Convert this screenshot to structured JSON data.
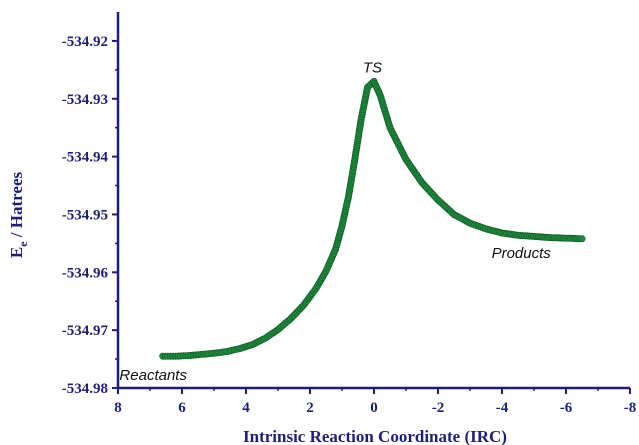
{
  "chart_data": {
    "type": "scatter",
    "title": "",
    "xlabel": "Intrinsic Reaction Coordinate (IRC)",
    "ylabel_main": "E",
    "ylabel_sub": "e",
    "ylabel_rest": " / Hatrees",
    "xlim": [
      8,
      -8
    ],
    "ylim": [
      -534.98,
      -534.915
    ],
    "x_reversed": true,
    "x_ticks": [
      "8",
      "6",
      "4",
      "2",
      "0",
      "-2",
      "-4",
      "-6",
      "-8"
    ],
    "y_ticks": [
      "-534.92",
      "-534.93",
      "-534.94",
      "-534.95",
      "-534.96",
      "-534.97",
      "-534.98"
    ],
    "grid": false,
    "marker_color": "#1e8a3c",
    "axis_color": "#1f1f7a",
    "annotations": [
      {
        "text": "TS",
        "x": 0.05,
        "y": -534.9255
      },
      {
        "text": "Reactants",
        "x": 6.9,
        "y": -534.9786
      },
      {
        "text": "Products",
        "x": -4.6,
        "y": -534.9575
      }
    ],
    "series": [
      {
        "x": [
          6.6,
          6.2,
          5.8,
          5.4,
          5.0,
          4.6,
          4.2,
          3.8,
          3.4,
          3.0,
          2.6,
          2.2,
          1.8,
          1.5,
          1.2,
          1.0,
          0.8,
          0.6,
          0.4,
          0.2,
          0.0,
          -0.2,
          -0.5,
          -1.0,
          -1.5,
          -2.0,
          -2.5,
          -3.0,
          -3.5,
          -4.0,
          -4.5,
          -5.0,
          -5.5,
          -6.0,
          -6.5
        ],
        "y": [
          -534.9745,
          -534.9745,
          -534.9744,
          -534.9742,
          -534.974,
          -534.9737,
          -534.9732,
          -534.9725,
          -534.9714,
          -534.9699,
          -534.968,
          -534.9657,
          -534.9627,
          -534.9598,
          -534.956,
          -534.952,
          -534.947,
          -534.9405,
          -534.9335,
          -534.928,
          -534.927,
          -534.9295,
          -534.935,
          -534.9405,
          -534.9445,
          -534.9475,
          -534.95,
          -534.9515,
          -534.9525,
          -534.9532,
          -534.9536,
          -534.9538,
          -534.954,
          -534.9541,
          -534.9542
        ]
      }
    ]
  }
}
